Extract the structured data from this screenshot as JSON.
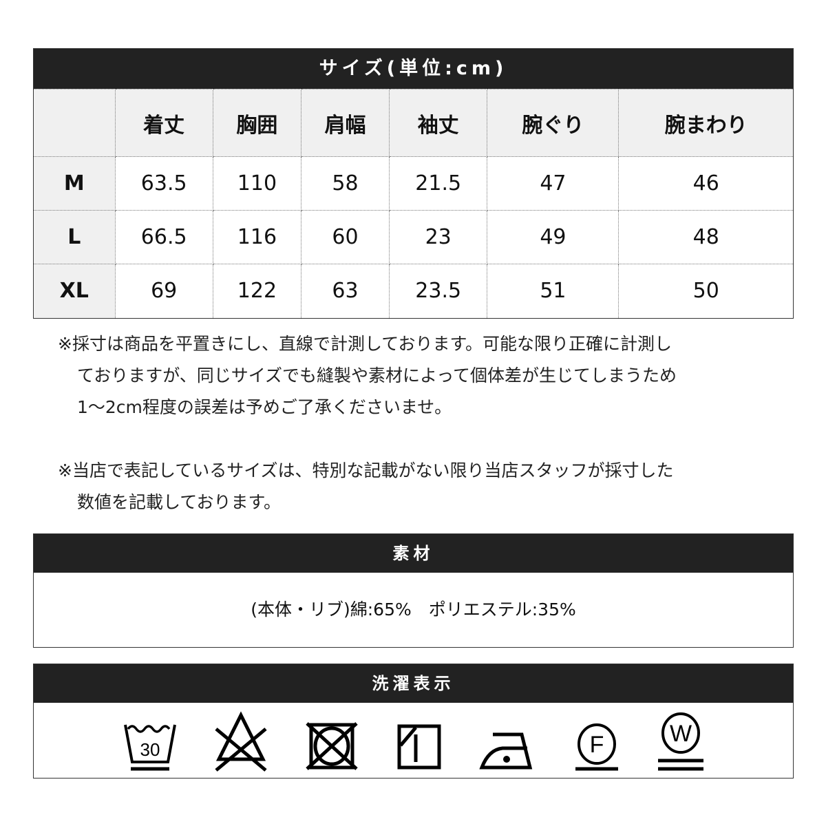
{
  "size_table": {
    "title": "サイズ(単位:cm)",
    "columns": [
      "",
      "着丈",
      "胸囲",
      "肩幅",
      "袖丈",
      "腕ぐり",
      "腕まわり"
    ],
    "rows": [
      [
        "M",
        "63.5",
        "110",
        "58",
        "21.5",
        "47",
        "46"
      ],
      [
        "L",
        "66.5",
        "116",
        "60",
        "23",
        "49",
        "48"
      ],
      [
        "XL",
        "69",
        "122",
        "63",
        "23.5",
        "51",
        "50"
      ]
    ]
  },
  "notes": [
    [
      "※採寸は商品を平置きにし、直線で計測しております。可能な限り正確に計測し",
      "ておりますが、同じサイズでも縫製や素材によって個体差が生じてしまうため",
      "1〜2cm程度の誤差は予めご了承くださいませ。"
    ],
    [
      "※当店で表記しているサイズは、特別な記載がない限り当店スタッフが採寸した",
      "数値を記載しております。"
    ]
  ],
  "material": {
    "title": "素材",
    "text": "(本体・リブ)綿:65%　ポリエステル:35%"
  },
  "care": {
    "title": "洗濯表示",
    "icons": [
      "wash-30-gentle-icon",
      "no-bleach-icon",
      "no-tumble-dry-icon",
      "shade-drip-dry-icon",
      "iron-low-icon",
      "dry-clean-f-icon",
      "wet-clean-w-icon"
    ],
    "wash_temp": "30",
    "dry_clean_letter": "F",
    "wet_clean_letter": "W"
  }
}
